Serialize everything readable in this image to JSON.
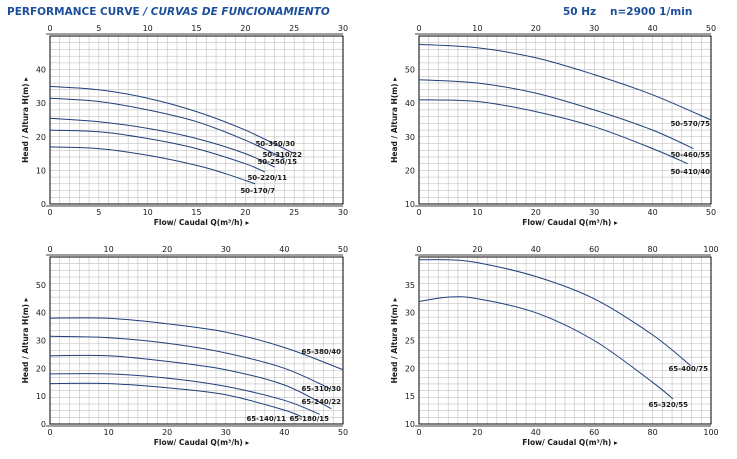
{
  "header": {
    "title": "PERFORMANCE CURVE",
    "title_es": "/ CURVAS DE FUNCIONAMIENTO",
    "frequency": "50 Hz",
    "speed": "n=2900 1/min",
    "accent_color": "#1b4f9c"
  },
  "colors": {
    "curve": "#1f3f7a",
    "grid": "#b5b5b5",
    "frame": "#000000",
    "text": "#1a1a1a"
  },
  "chart_data": [
    {
      "type": "line",
      "xlabel": "Flow/ Caudal Q(m³/h) ▸",
      "ylabel": "Head / Altura H(m) ▸",
      "xlim": [
        0,
        30
      ],
      "ylim": [
        0,
        50
      ],
      "xticks": [
        0,
        5,
        10,
        15,
        20,
        25,
        30
      ],
      "yticks": [
        0,
        10,
        20,
        30,
        40
      ],
      "grid": true,
      "series": [
        {
          "name": "50-350/30",
          "x": [
            0,
            5,
            10,
            15,
            20,
            25
          ],
          "y": [
            35,
            34,
            31.5,
            27.5,
            22,
            15
          ]
        },
        {
          "name": "50-310/22",
          "x": [
            0,
            5,
            10,
            15,
            20,
            24
          ],
          "y": [
            31.5,
            30.5,
            28,
            24.5,
            19,
            13.5
          ]
        },
        {
          "name": "50-250/15",
          "x": [
            0,
            5,
            10,
            15,
            20,
            23
          ],
          "y": [
            25.5,
            24.5,
            22.5,
            19.5,
            15,
            11
          ]
        },
        {
          "name": "50-220/11",
          "x": [
            0,
            5,
            10,
            15,
            20,
            22
          ],
          "y": [
            22,
            21.5,
            19.5,
            16.5,
            12,
            9.5
          ]
        },
        {
          "name": "50-170/7",
          "x": [
            0,
            5,
            10,
            15,
            18,
            21
          ],
          "y": [
            17,
            16.5,
            14.5,
            11.5,
            9,
            6
          ]
        }
      ]
    },
    {
      "type": "line",
      "xlabel": "Flow/ Caudal Q(m³/h) ▸",
      "ylabel": "Head / Altura H(m) ▸",
      "xlim": [
        0,
        50
      ],
      "ylim": [
        10,
        60
      ],
      "xticks": [
        0,
        10,
        20,
        30,
        40,
        50
      ],
      "yticks": [
        10,
        20,
        30,
        40,
        50
      ],
      "grid": true,
      "series": [
        {
          "name": "50-570/75",
          "x": [
            0,
            10,
            20,
            30,
            40,
            50
          ],
          "y": [
            57.5,
            56.5,
            53.5,
            48.5,
            42.5,
            35
          ]
        },
        {
          "name": "50-460/55",
          "x": [
            0,
            10,
            20,
            30,
            40,
            47
          ],
          "y": [
            47,
            46,
            43,
            38,
            32,
            26.5
          ]
        },
        {
          "name": "50-410/40",
          "x": [
            0,
            10,
            20,
            30,
            40,
            46
          ],
          "y": [
            41,
            40.5,
            37.5,
            33,
            26.5,
            22
          ]
        }
      ]
    },
    {
      "type": "line",
      "xlabel": "Flow/ Caudal Q(m³/h) ▸",
      "ylabel": "Head / Altura H(m) ▸",
      "xlim": [
        0,
        50
      ],
      "ylim": [
        0,
        60
      ],
      "xticks": [
        0,
        10,
        20,
        30,
        40,
        50
      ],
      "yticks": [
        0,
        10,
        20,
        30,
        40,
        50
      ],
      "grid": true,
      "series": [
        {
          "name": "65-380/40",
          "x": [
            0,
            10,
            20,
            30,
            40,
            50
          ],
          "y": [
            38,
            38,
            36,
            33,
            27.5,
            19.5
          ]
        },
        {
          "name": "65-310/30",
          "x": [
            0,
            10,
            20,
            30,
            40,
            48
          ],
          "y": [
            31.5,
            31,
            29,
            25.5,
            20,
            12.5
          ]
        },
        {
          "name": "65-240/22",
          "x": [
            0,
            10,
            20,
            30,
            40,
            48
          ],
          "y": [
            24.5,
            24.5,
            22.5,
            19.5,
            14,
            5.5
          ]
        },
        {
          "name": "65-180/15",
          "x": [
            0,
            10,
            20,
            30,
            40,
            46
          ],
          "y": [
            18,
            18,
            16.5,
            13.5,
            8.5,
            3.5
          ]
        },
        {
          "name": "65-140/11",
          "x": [
            0,
            10,
            20,
            30,
            40,
            43
          ],
          "y": [
            14.5,
            14.5,
            13,
            10.5,
            5,
            2.5
          ]
        }
      ]
    },
    {
      "type": "line",
      "xlabel": "Flow/ Caudal Q(m³/h) ▸",
      "ylabel": "Head / Altura H(m) ▸",
      "xlim": [
        0,
        100
      ],
      "ylim": [
        10,
        40
      ],
      "xticks": [
        0,
        20,
        40,
        60,
        80,
        100
      ],
      "yticks": [
        10,
        15,
        20,
        25,
        30,
        35
      ],
      "grid": true,
      "series": [
        {
          "name": "65-400/75",
          "x": [
            0,
            10,
            20,
            40,
            60,
            80,
            93
          ],
          "y": [
            39.5,
            39.5,
            39,
            36.5,
            32.5,
            26,
            20.5
          ]
        },
        {
          "name": "65-320/55",
          "x": [
            0,
            10,
            20,
            40,
            60,
            80,
            87
          ],
          "y": [
            32,
            32.8,
            32.5,
            30,
            25,
            17.5,
            14.5
          ]
        }
      ]
    }
  ]
}
